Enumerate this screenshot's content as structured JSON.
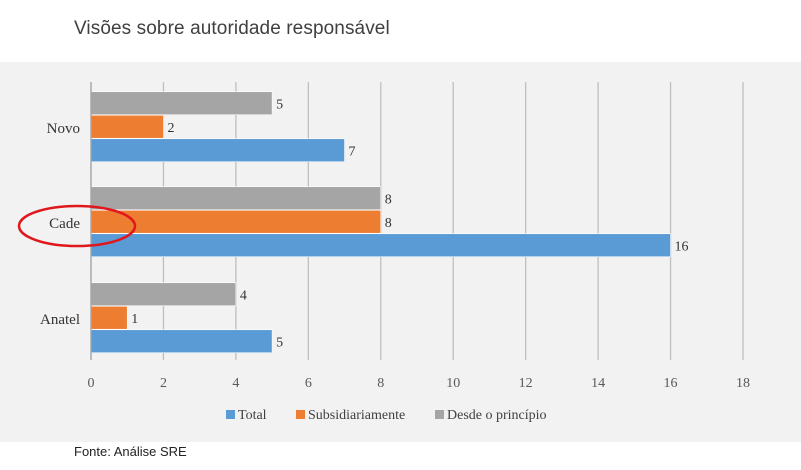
{
  "title": "Visões sobre autoridade responsável",
  "source": "Fonte: Análise SRE",
  "colors": {
    "total": "#5b9bd5",
    "subsidiariamente": "#ed7d31",
    "desde_o_principio": "#a5a5a5",
    "highlight_circle": "#e0181d",
    "grid": "#bfbfbf"
  },
  "chart_data": {
    "type": "bar",
    "orientation": "horizontal",
    "categories": [
      "Novo",
      "Cade",
      "Anatel"
    ],
    "series": [
      {
        "name": "Desde o princípio",
        "values": [
          5,
          8,
          4
        ]
      },
      {
        "name": "Subsidiariamente",
        "values": [
          2,
          8,
          1
        ]
      },
      {
        "name": "Total",
        "values": [
          7,
          16,
          5
        ]
      }
    ],
    "legend": [
      "Total",
      "Subsidiariamente",
      "Desde o princípio"
    ],
    "legend_position": "bottom",
    "xlim": [
      0,
      18
    ],
    "xticks": [
      0,
      2,
      4,
      6,
      8,
      10,
      12,
      14,
      16,
      18
    ],
    "grid": true,
    "highlighted_category": "Cade"
  }
}
